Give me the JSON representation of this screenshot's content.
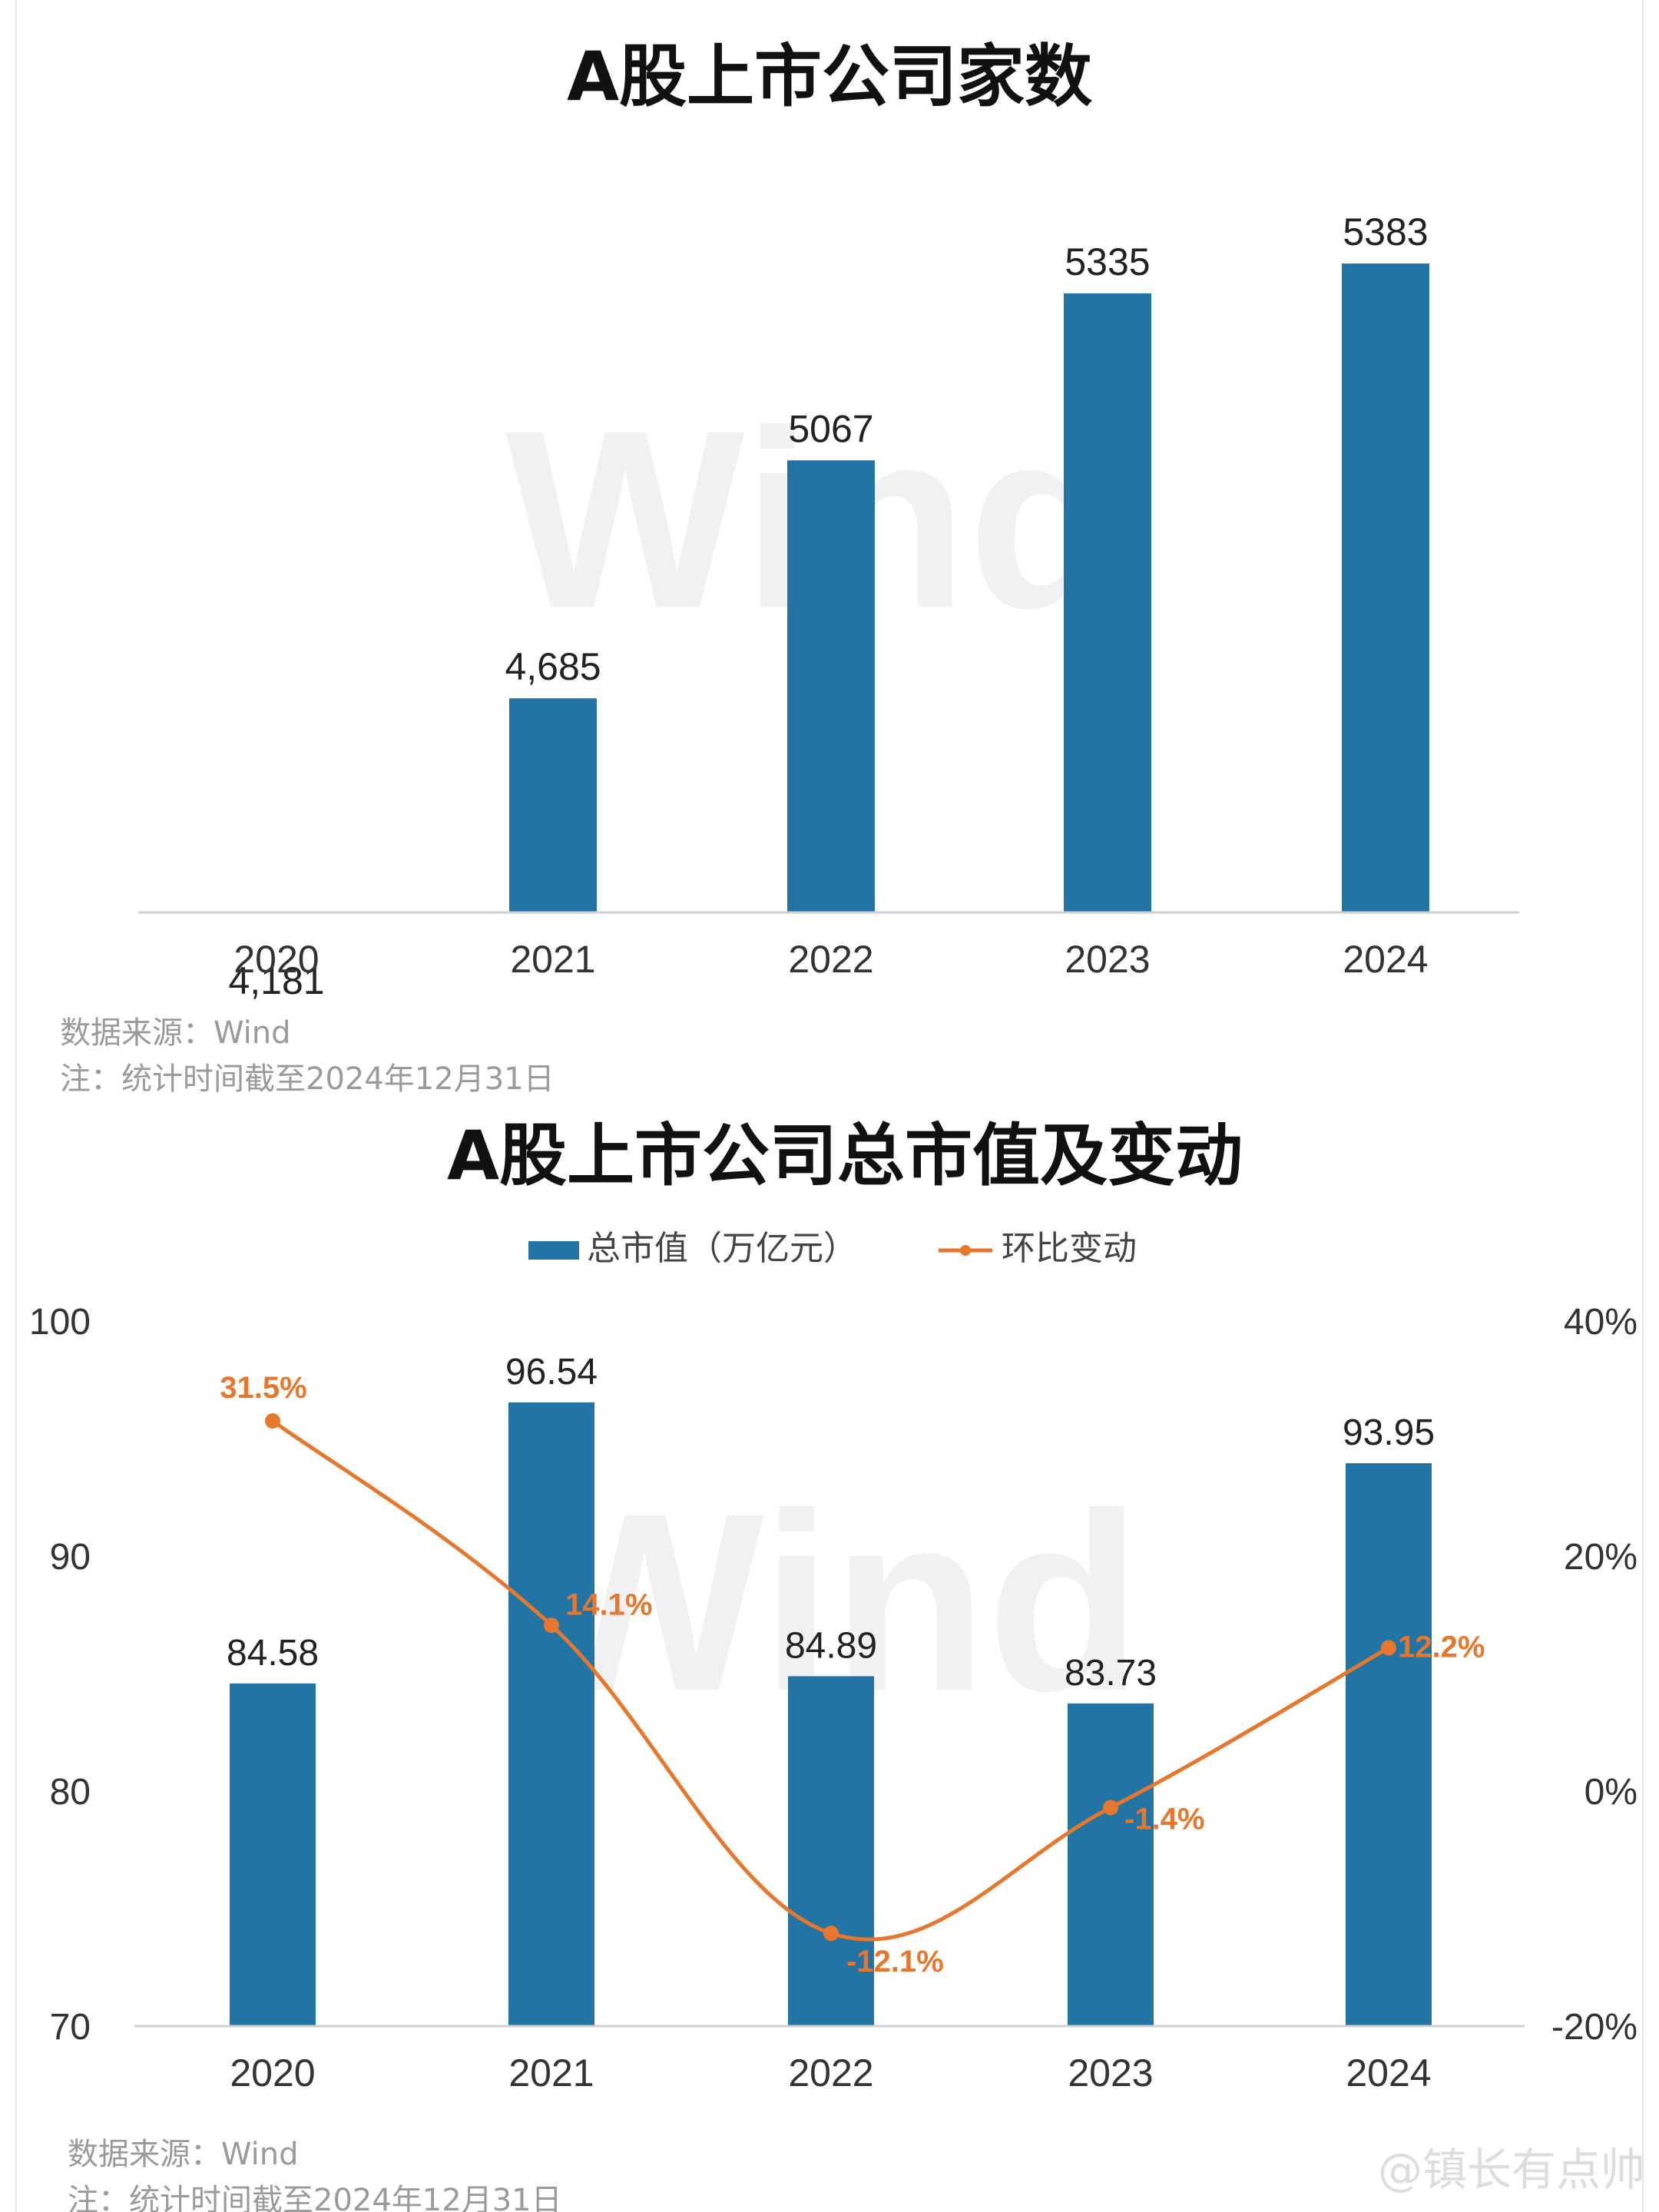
{
  "chart_data": [
    {
      "type": "bar",
      "title": "A股上市公司家数",
      "categories": [
        "2020",
        "2021",
        "2022",
        "2023",
        "2024"
      ],
      "values": [
        4181,
        4685,
        5067,
        5335,
        5383
      ],
      "value_labels": [
        "4,181",
        "4,685",
        "5067",
        "5335",
        "5383"
      ],
      "bar_color": "#2274a5",
      "grid": false,
      "source_note": "数据来源：Wind",
      "footnote": "注：统计时间截至2024年12月31日",
      "watermark": "Wind"
    },
    {
      "type": "bar",
      "title": "A股上市公司总市值及变动",
      "categories": [
        "2020",
        "2021",
        "2022",
        "2023",
        "2024"
      ],
      "series": [
        {
          "name": "总市值（万亿元）",
          "type": "bar",
          "axis": "left",
          "values": [
            84.58,
            96.54,
            84.89,
            83.73,
            93.95
          ],
          "value_labels": [
            "84.58",
            "96.54",
            "84.89",
            "83.73",
            "93.95"
          ],
          "color": "#2274a5"
        },
        {
          "name": "环比变动",
          "type": "line",
          "axis": "right",
          "values": [
            31.5,
            14.1,
            -12.1,
            -1.4,
            12.2
          ],
          "value_labels": [
            "31.5%",
            "14.1%",
            "-12.1%",
            "-1.4%",
            "12.2%"
          ],
          "color": "#e8772e"
        }
      ],
      "y_left": {
        "lim": [
          70,
          100
        ],
        "ticks": [
          "100",
          "90",
          "80",
          "70"
        ]
      },
      "y_right": {
        "lim": [
          -20,
          40
        ],
        "ticks": [
          "40%",
          "20%",
          "0%",
          "-20%"
        ]
      },
      "legend": "top-center",
      "grid": false,
      "source_note": "数据来源：Wind",
      "footnote": "注：统计时间截至2024年12月31日",
      "watermark": "Wind"
    }
  ],
  "credit": "@镇长有点帅"
}
